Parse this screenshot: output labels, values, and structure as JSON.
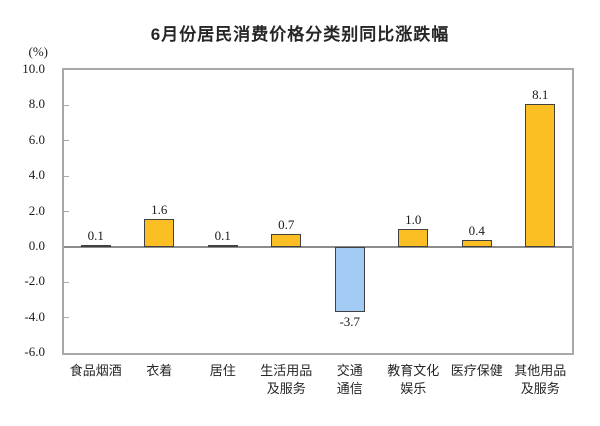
{
  "title": "6月份居民消费价格分类别同比涨跌幅",
  "y_axis_unit": "(%)",
  "chart_data": {
    "type": "bar",
    "title": "6月份居民消费价格分类别同比涨跌幅",
    "categories": [
      "食品烟酒",
      "衣着",
      "居住",
      "生活用品及服务",
      "交通通信",
      "教育文化娱乐",
      "医疗保健",
      "其他用品及服务"
    ],
    "category_lines": [
      [
        "食品烟酒"
      ],
      [
        "衣着"
      ],
      [
        "居住"
      ],
      [
        "生活用品",
        "及服务"
      ],
      [
        "交通",
        "通信"
      ],
      [
        "教育文化",
        "娱乐"
      ],
      [
        "医疗保健"
      ],
      [
        "其他用品",
        "及服务"
      ]
    ],
    "values": [
      0.1,
      1.6,
      0.1,
      0.7,
      -3.7,
      1.0,
      0.4,
      8.1
    ],
    "value_labels": [
      "0.1",
      "1.6",
      "0.1",
      "0.7",
      "-3.7",
      "1.0",
      "0.4",
      "8.1"
    ],
    "xlabel": "",
    "ylabel": "(%)",
    "ylim": [
      -6.0,
      10.0
    ],
    "ytick_step": 2.0,
    "yticks": [
      "10.0",
      "8.0",
      "6.0",
      "4.0",
      "2.0",
      "0.0",
      "-2.0",
      "-4.0",
      "-6.0"
    ],
    "ytick_values": [
      10,
      8,
      6,
      4,
      2,
      0,
      -2,
      -4,
      -6
    ],
    "grid": false,
    "legend": "none",
    "colors": {
      "positive_bar": "#fbbe23",
      "negative_bar": "#a2cbf4",
      "bar_border": "#404040",
      "plot_border": "#a9a9a9",
      "zero_line": "#8c8c8c",
      "text": "#1a1a1a"
    }
  }
}
